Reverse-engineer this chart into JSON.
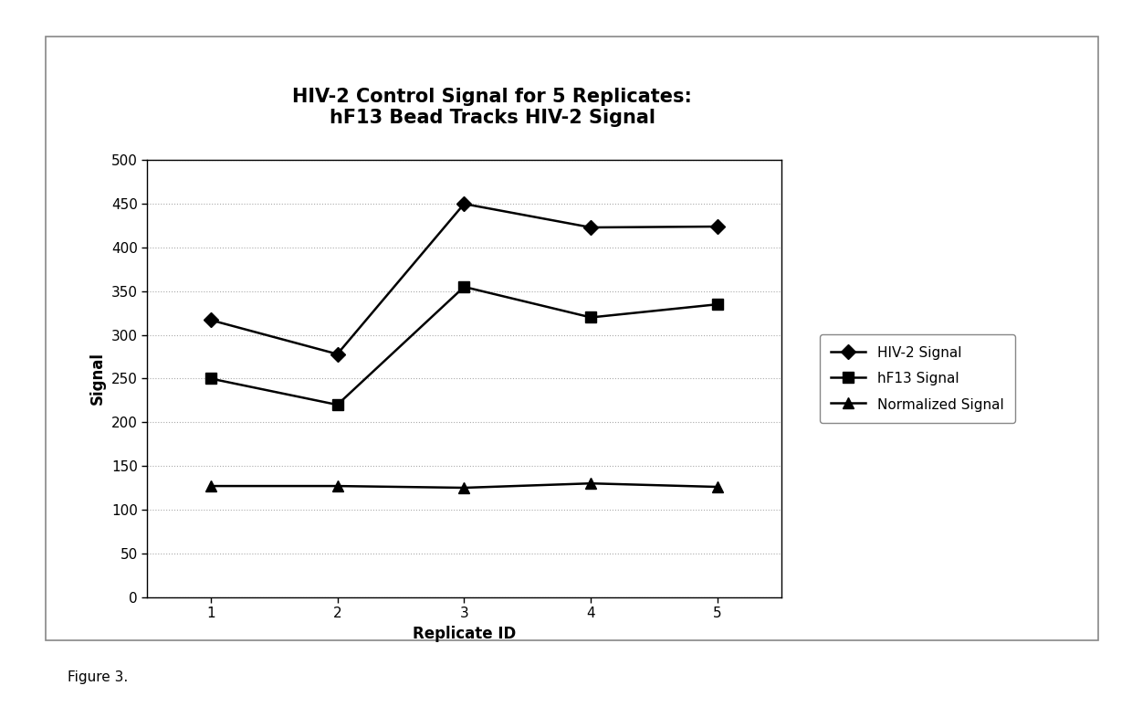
{
  "title_line1": "HIV-2 Control Signal for 5 Replicates:",
  "title_line2": "hF13 Bead Tracks HIV-2 Signal",
  "xlabel": "Replicate ID",
  "ylabel": "Signal",
  "x": [
    1,
    2,
    3,
    4,
    5
  ],
  "hiv2_signal": [
    317,
    278,
    450,
    423,
    424
  ],
  "hf13_signal": [
    250,
    220,
    355,
    320,
    335
  ],
  "normalized_signal": [
    127,
    127,
    125,
    130,
    126
  ],
  "ylim": [
    0,
    500
  ],
  "yticks": [
    0,
    50,
    100,
    150,
    200,
    250,
    300,
    350,
    400,
    450,
    500
  ],
  "xlim": [
    0.5,
    5.5
  ],
  "xticks": [
    1,
    2,
    3,
    4,
    5
  ],
  "legend_labels": [
    "HIV-2 Signal",
    "hF13 Signal",
    "Normalized Signal"
  ],
  "line_color": "#000000",
  "bg_color": "#ffffff",
  "figure_caption": "Figure 3.",
  "title_fontsize": 15,
  "axis_label_fontsize": 12,
  "tick_fontsize": 11,
  "legend_fontsize": 11
}
